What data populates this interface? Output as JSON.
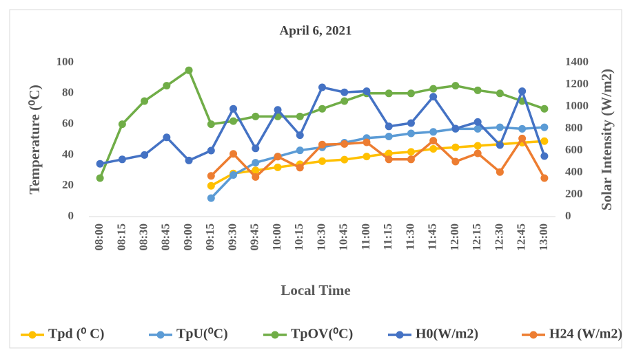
{
  "chart_data": {
    "type": "line",
    "title": "April 6, 2021",
    "x_label": "Local Time",
    "y_label": "Temperature (⁰C)",
    "y2_label": "Solar Intensity (W/m2)",
    "categories": [
      "08:00",
      "08:15",
      "08:30",
      "08:45",
      "09:00",
      "09:15",
      "09:30",
      "09:45",
      "10:00",
      "10:15",
      "10:30",
      "10:45",
      "11:00",
      "11:15",
      "11:30",
      "11:45",
      "12:00",
      "12:15",
      "12:30",
      "12:45",
      "13:00"
    ],
    "ylim": [
      0,
      100
    ],
    "yticks": [
      0,
      20,
      40,
      60,
      80,
      100
    ],
    "y2lim": [
      0,
      1400
    ],
    "y2ticks": [
      0,
      200,
      400,
      600,
      800,
      1000,
      1200,
      1400
    ],
    "legend": "bottom",
    "series": [
      {
        "name": "Tpd (⁰ C)",
        "color": "#FFC000",
        "values": [
          null,
          null,
          null,
          null,
          null,
          20,
          28,
          30,
          32,
          34,
          36,
          37,
          39,
          41,
          42,
          44,
          45,
          46,
          47,
          48,
          49
        ]
      },
      {
        "name": "TpU(⁰C)",
        "color": "#5B9BD5",
        "values": [
          null,
          null,
          null,
          null,
          null,
          12,
          27,
          35,
          39,
          43,
          45,
          48,
          51,
          52,
          54,
          55,
          57,
          57,
          58,
          57,
          58
        ]
      },
      {
        "name": "TpOV(⁰C)",
        "color": "#70AD47",
        "values": [
          25,
          60,
          75,
          85,
          95,
          60,
          62,
          65,
          65,
          65,
          70,
          75,
          80,
          80,
          80,
          83,
          85,
          82,
          80,
          75,
          70
        ]
      },
      {
        "name": "H0(W/m2)",
        "color": "#4472C4",
        "axis": "y2",
        "values": [
          480,
          520,
          560,
          720,
          510,
          600,
          980,
          620,
          970,
          740,
          1175,
          1130,
          1140,
          820,
          850,
          1090,
          800,
          860,
          650,
          1140,
          550
        ]
      },
      {
        "name": "H24 (W/m2)",
        "color": "#ED7D31",
        "axis": "y2",
        "values": [
          null,
          null,
          null,
          null,
          null,
          370,
          570,
          360,
          545,
          445,
          655,
          660,
          675,
          520,
          520,
          690,
          500,
          575,
          405,
          710,
          350
        ]
      }
    ]
  }
}
